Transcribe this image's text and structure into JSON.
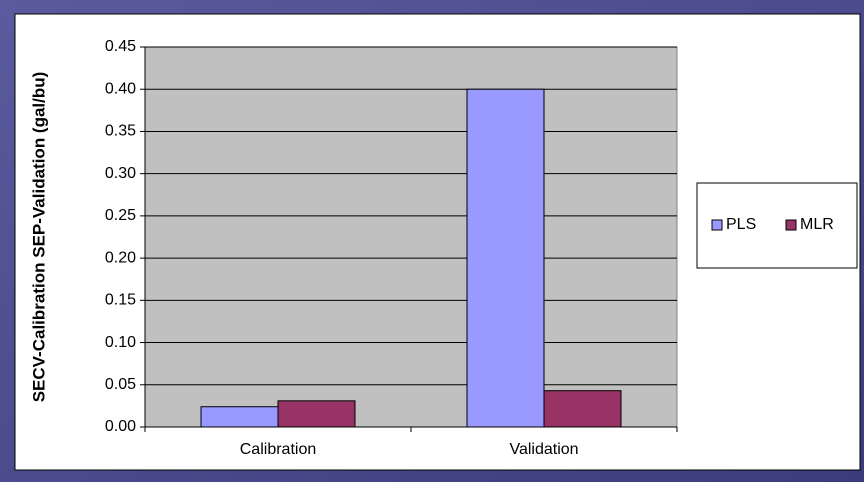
{
  "chart_data": {
    "type": "bar",
    "y_label": "SECV-Calibration SEP-Validation (gal/bu)",
    "categories": [
      "Calibration",
      "Validation"
    ],
    "series": [
      {
        "name": "PLS",
        "color": "#9999ff",
        "values": [
          0.024,
          0.4
        ]
      },
      {
        "name": "MLR",
        "color": "#993366",
        "values": [
          0.031,
          0.043
        ]
      }
    ],
    "ylim": [
      0,
      0.45
    ],
    "yticks": [
      {
        "value": 0,
        "label": "0.00"
      },
      0.05,
      {
        "value": 0.1,
        "label": "0.10"
      },
      0.15,
      {
        "value": 0.2,
        "label": "0.20"
      },
      0.25,
      {
        "value": 0.3,
        "label": "0.30"
      },
      0.35,
      {
        "value": 0.4,
        "label": "0.40"
      },
      0.45
    ],
    "grid": true,
    "legend": "right",
    "plot_background": "#c0c0c0"
  }
}
